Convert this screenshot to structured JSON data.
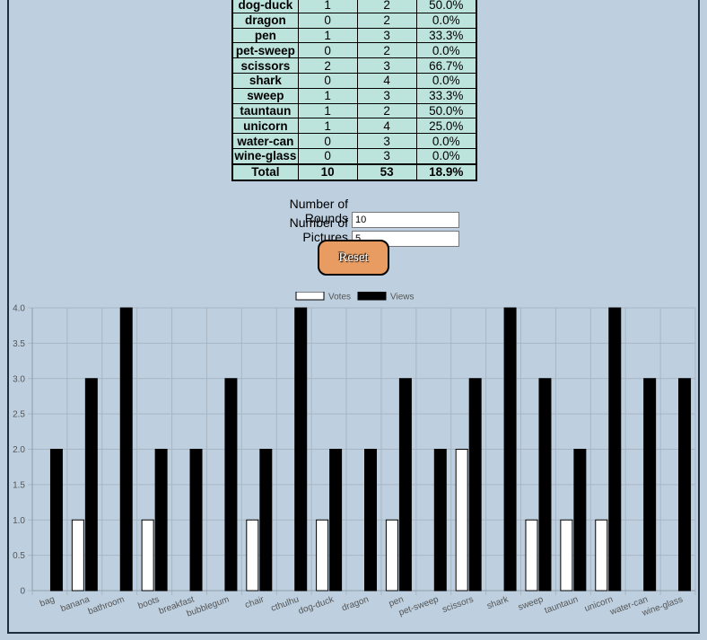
{
  "table": {
    "rows": [
      {
        "name": "dog-duck",
        "votes": "1",
        "views": "2",
        "pct": "50.0%"
      },
      {
        "name": "dragon",
        "votes": "0",
        "views": "2",
        "pct": "0.0%"
      },
      {
        "name": "pen",
        "votes": "1",
        "views": "3",
        "pct": "33.3%"
      },
      {
        "name": "pet-sweep",
        "votes": "0",
        "views": "2",
        "pct": "0.0%"
      },
      {
        "name": "scissors",
        "votes": "2",
        "views": "3",
        "pct": "66.7%"
      },
      {
        "name": "shark",
        "votes": "0",
        "views": "4",
        "pct": "0.0%"
      },
      {
        "name": "sweep",
        "votes": "1",
        "views": "3",
        "pct": "33.3%"
      },
      {
        "name": "tauntaun",
        "votes": "1",
        "views": "2",
        "pct": "50.0%"
      },
      {
        "name": "unicorn",
        "votes": "1",
        "views": "4",
        "pct": "25.0%"
      },
      {
        "name": "water-can",
        "votes": "0",
        "views": "3",
        "pct": "0.0%"
      },
      {
        "name": "wine-glass",
        "votes": "0",
        "views": "3",
        "pct": "0.0%"
      }
    ],
    "total": {
      "name": "Total",
      "votes": "10",
      "views": "53",
      "pct": "18.9%"
    }
  },
  "form": {
    "rounds_label": "Number of Rounds",
    "rounds_value": "10",
    "pictures_label": "Number of Pictures",
    "pictures_value": "5",
    "reset_label": "Reset"
  },
  "chart_data": {
    "type": "bar",
    "categories": [
      "bag",
      "banana",
      "bathroom",
      "boots",
      "breakfast",
      "bubblegum",
      "chair",
      "cthulhu",
      "dog-duck",
      "dragon",
      "pen",
      "pet-sweep",
      "scissors",
      "shark",
      "sweep",
      "tauntaun",
      "unicorn",
      "water-can",
      "wine-glass"
    ],
    "series": [
      {
        "name": "Votes",
        "color": "#ffffff",
        "values": [
          0,
          1,
          0,
          1,
          0,
          0,
          1,
          0,
          1,
          0,
          1,
          0,
          2,
          0,
          1,
          1,
          1,
          0,
          0
        ]
      },
      {
        "name": "Views",
        "color": "#000000",
        "values": [
          2,
          3,
          4,
          2,
          2,
          3,
          2,
          4,
          2,
          2,
          3,
          2,
          3,
          4,
          3,
          2,
          4,
          3,
          3
        ]
      }
    ],
    "ylim": [
      0,
      4
    ],
    "yticks": [
      "0",
      "0.5",
      "1.0",
      "1.5",
      "2.0",
      "2.5",
      "3.0",
      "3.5",
      "4.0"
    ],
    "grid": true,
    "legend": "top-center"
  }
}
